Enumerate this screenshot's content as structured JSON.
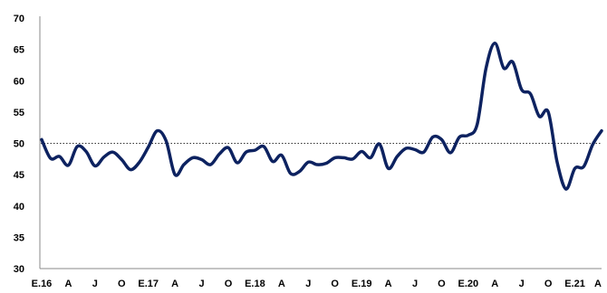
{
  "chart_data": {
    "type": "line",
    "title": "",
    "xlabel": "",
    "ylabel": "",
    "ylim": [
      30,
      70
    ],
    "yticks": [
      30,
      35,
      40,
      45,
      50,
      55,
      60,
      65,
      70
    ],
    "x_tick_labels": [
      "E.16",
      "A",
      "J",
      "O",
      "E.17",
      "A",
      "J",
      "O",
      "E.18",
      "A",
      "J",
      "O",
      "E.19",
      "A",
      "J",
      "O",
      "E.20",
      "A",
      "J",
      "O",
      "E.21",
      "A"
    ],
    "x_tick_step_months": 3,
    "reference_line": {
      "value": 50,
      "style": "dotted"
    },
    "grid": false,
    "legend": "none",
    "series": [
      {
        "color": "#0d2260",
        "values": [
          50.6,
          47.6,
          47.9,
          46.5,
          49.5,
          48.7,
          46.4,
          47.8,
          48.6,
          47.4,
          45.8,
          47.0,
          49.4,
          52.0,
          50.4,
          45.0,
          46.6,
          47.7,
          47.4,
          46.6,
          48.3,
          49.3,
          46.9,
          48.6,
          48.9,
          49.5,
          47.1,
          48.1,
          45.2,
          45.5,
          47.0,
          46.6,
          46.8,
          47.7,
          47.7,
          47.5,
          48.7,
          47.7,
          49.9,
          46.0,
          47.9,
          49.2,
          49.0,
          48.6,
          51.0,
          50.6,
          48.5,
          51.0,
          51.3,
          53.0,
          62.0,
          66.0,
          62.0,
          63.0,
          58.6,
          57.9,
          54.3,
          55.0,
          47.0,
          42.7,
          46.0,
          46.3,
          49.8,
          52.0
        ]
      }
    ]
  }
}
